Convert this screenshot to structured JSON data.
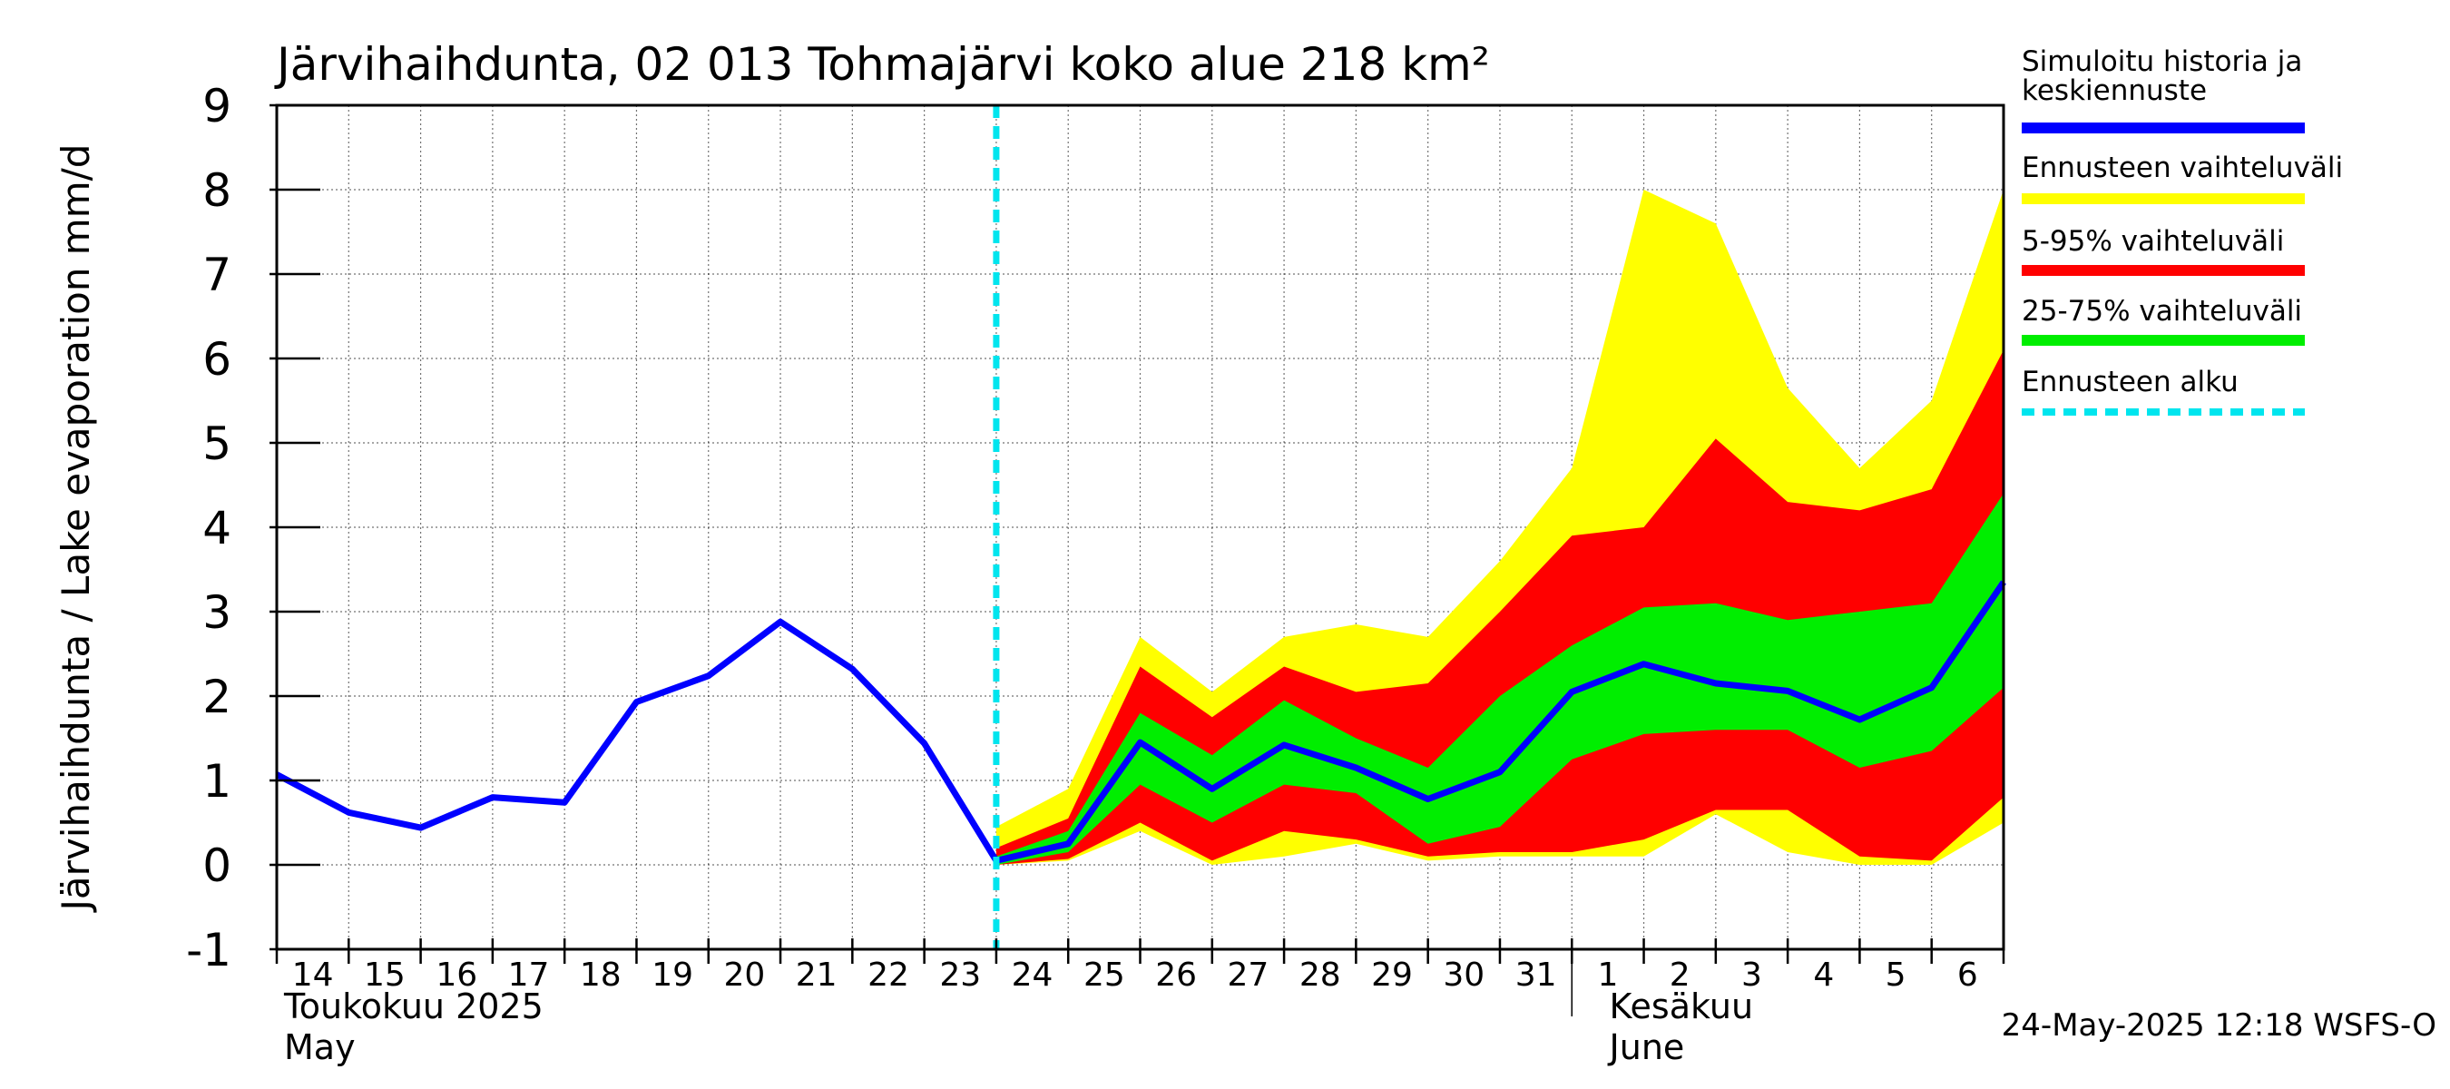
{
  "title": "Järvihaihdunta, 02 013 Tohmajärvi koko alue 218 km²",
  "footer": "24-May-2025 12:18 WSFS-O",
  "chart_data": {
    "type": "area",
    "ylabel": "Järvihaihdunta / Lake evaporation   mm/d",
    "ylim": [
      -1,
      9
    ],
    "yticks": [
      "-1",
      "0",
      "1",
      "2",
      "3",
      "4",
      "5",
      "6",
      "7",
      "8",
      "9"
    ],
    "xlim": [
      "2025-05-14",
      "2025-06-07"
    ],
    "xtick_labels": [
      "14",
      "15",
      "16",
      "17",
      "18",
      "19",
      "20",
      "21",
      "22",
      "23",
      "24",
      "25",
      "26",
      "27",
      "28",
      "29",
      "30",
      "31",
      "1",
      "2",
      "3",
      "4",
      "5",
      "6"
    ],
    "month_labels": [
      {
        "fi": "Toukokuu  2025",
        "en": "May"
      },
      {
        "fi": "Kesäkuu",
        "en": "June"
      }
    ],
    "grid": true,
    "legend_placement": "right",
    "forecast_start": "2025-05-24",
    "history": {
      "name": "Simuloitu historia ja keskiennuste",
      "color": "#0000ff",
      "x": [
        "2025-05-14",
        "2025-05-15",
        "2025-05-16",
        "2025-05-17",
        "2025-05-18",
        "2025-05-19",
        "2025-05-20",
        "2025-05-21",
        "2025-05-22",
        "2025-05-23",
        "2025-05-24"
      ],
      "y": [
        1.07,
        0.62,
        0.44,
        0.8,
        0.74,
        1.93,
        2.24,
        2.88,
        2.32,
        1.44,
        0.05
      ]
    },
    "forecast_x": [
      "2025-05-24",
      "2025-05-25",
      "2025-05-26",
      "2025-05-27",
      "2025-05-28",
      "2025-05-29",
      "2025-05-30",
      "2025-05-31",
      "2025-06-01",
      "2025-06-02",
      "2025-06-03",
      "2025-06-04",
      "2025-06-05",
      "2025-06-06",
      "2025-06-07"
    ],
    "series": [
      {
        "name": "Ennusteen vaihteluväli",
        "color": "#ffff00",
        "lower": [
          0.0,
          0.05,
          0.4,
          0.0,
          0.1,
          0.25,
          0.05,
          0.1,
          0.1,
          0.1,
          0.6,
          0.15,
          0.0,
          0.0,
          0.5
        ],
        "upper": [
          0.45,
          0.9,
          2.7,
          2.05,
          2.7,
          2.85,
          2.7,
          3.6,
          4.7,
          8.0,
          7.6,
          5.65,
          4.7,
          5.5,
          8.0
        ]
      },
      {
        "name": "5-95% vaihteluväli",
        "color": "#ff0000",
        "lower": [
          0.0,
          0.07,
          0.5,
          0.05,
          0.4,
          0.3,
          0.1,
          0.15,
          0.15,
          0.3,
          0.65,
          0.65,
          0.1,
          0.05,
          0.8
        ],
        "upper": [
          0.2,
          0.55,
          2.35,
          1.75,
          2.35,
          2.05,
          2.15,
          3.0,
          3.9,
          4.0,
          5.05,
          4.3,
          4.2,
          4.45,
          6.1
        ]
      },
      {
        "name": "25-75% vaihteluväli",
        "color": "#00ee00",
        "lower": [
          0.0,
          0.15,
          0.95,
          0.5,
          0.95,
          0.85,
          0.25,
          0.45,
          1.25,
          1.55,
          1.6,
          1.6,
          1.15,
          1.35,
          2.1
        ],
        "upper": [
          0.1,
          0.4,
          1.8,
          1.3,
          1.95,
          1.5,
          1.15,
          2.0,
          2.6,
          3.05,
          3.1,
          2.9,
          3.0,
          3.1,
          4.4
        ]
      }
    ],
    "median": {
      "name": "Simuloitu historia ja keskiennuste",
      "color": "#0000ff",
      "y": [
        0.05,
        0.25,
        1.45,
        0.9,
        1.42,
        1.15,
        0.78,
        1.1,
        2.05,
        2.38,
        2.15,
        2.06,
        1.72,
        2.1,
        3.35
      ]
    },
    "forecast_start_marker": {
      "name": "Ennusteen alku",
      "color": "#00e5ee"
    }
  },
  "legend": [
    {
      "label_lines": [
        "Simuloitu historia ja",
        "keskiennuste"
      ],
      "color": "#0000ff",
      "style": "solid"
    },
    {
      "label_lines": [
        "Ennusteen vaihteluväli"
      ],
      "color": "#ffff00",
      "style": "solid"
    },
    {
      "label_lines": [
        "5-95% vaihteluväli"
      ],
      "color": "#ff0000",
      "style": "solid"
    },
    {
      "label_lines": [
        "25-75% vaihteluväli"
      ],
      "color": "#00ee00",
      "style": "solid"
    },
    {
      "label_lines": [
        "Ennusteen alku"
      ],
      "color": "#00e5ee",
      "style": "dashed"
    }
  ]
}
